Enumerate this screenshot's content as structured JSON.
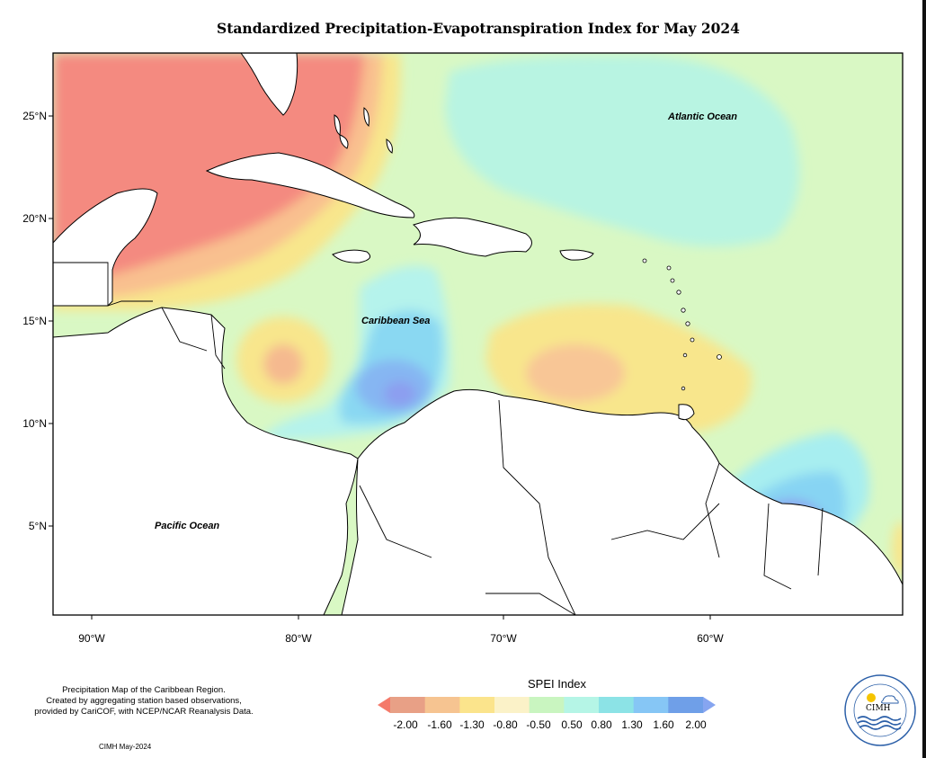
{
  "title": "Standardized Precipitation-Evapotranspiration Index for May 2024",
  "lat_labels": [
    "25°N",
    "20°N",
    "15°N",
    "10°N",
    "5°N"
  ],
  "lon_labels": [
    "90°W",
    "80°W",
    "70°W",
    "60°W"
  ],
  "oceans": {
    "atlantic": "Atlantic Ocean",
    "caribbean": "Caribbean Sea",
    "pacific": "Pacific Ocean"
  },
  "note_lines": [
    "Precipitation Map of the Caribbean Region.",
    "Created by aggregating station based observations,",
    "provided by CariCOF, with NCEP/NCAR Reanalysis Data."
  ],
  "credit": "CIMH May-2024",
  "legend": {
    "title": "SPEI Index",
    "ticks": [
      "-2.00",
      "-1.60",
      "-1.30",
      "-0.80",
      "-0.50",
      "0.50",
      "0.80",
      "1.30",
      "1.60",
      "2.00"
    ],
    "colors": [
      "#f47a6a",
      "#e8a086",
      "#f6c491",
      "#fbe48c",
      "#fbf2c8",
      "#c9f5c0",
      "#b5f5e6",
      "#8ce3e6",
      "#86c6f5",
      "#6f9fe8",
      "#86a5f0"
    ]
  },
  "logo_text": "CIMH",
  "colors": {
    "strong_dry": "#f47e7b",
    "dry": "#f9bf8f",
    "moderate_dry": "#f8e48a",
    "near_normal": "#d8f8c0",
    "moderate_wet": "#b3f4e6",
    "wet": "#8ce3f0",
    "very_wet": "#86b9f4",
    "extreme_wet": "#8ca0ee"
  }
}
